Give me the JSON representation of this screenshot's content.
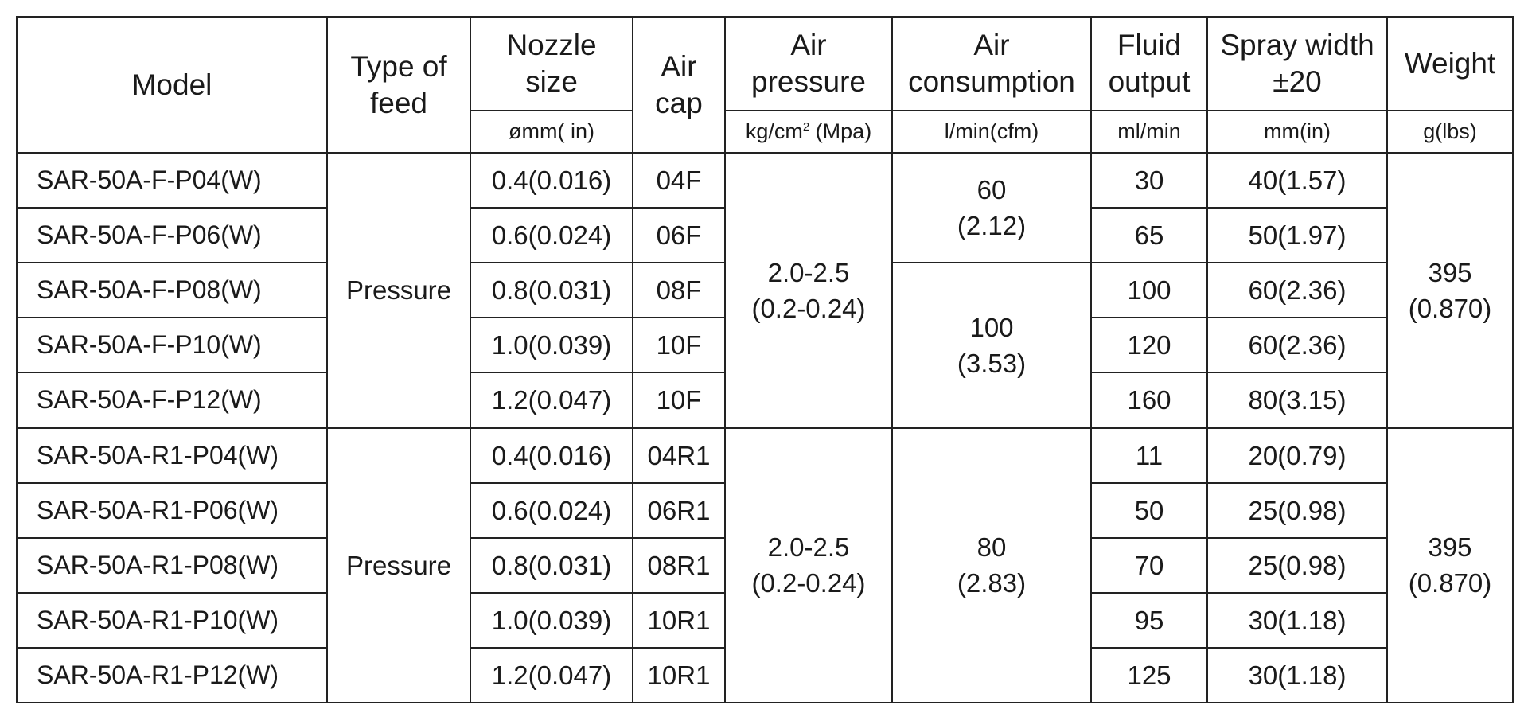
{
  "headers": {
    "model": "Model",
    "type_of_feed": "Type of\nfeed",
    "nozzle_size": "Nozzle\nsize",
    "air_cap": "Air\ncap",
    "air_pressure": "Air\npressure",
    "air_consumption": "Air\nconsumption",
    "fluid_output": "Fluid\noutput",
    "spray_width": "Spray width\n±20",
    "weight": "Weight"
  },
  "units": {
    "nozzle_size": "ømm( in)",
    "air_pressure_a": "kg/cm",
    "air_pressure_sup": "2",
    "air_pressure_b": " (Mpa)",
    "air_consumption": "l/min(cfm)",
    "fluid_output": "ml/min",
    "spray_width": "mm(in)",
    "weight": "g(lbs)"
  },
  "groups": [
    {
      "type_of_feed": "Pressure",
      "air_pressure": "2.0-2.5\n(0.2-0.24)",
      "weight": "395\n(0.870)",
      "air_consumption_a": "60\n(2.12)",
      "air_consumption_b": "100\n(3.53)",
      "rows": [
        {
          "model": "SAR-50A-F-P04(W)",
          "nozzle": "0.4(0.016)",
          "air_cap": "04F",
          "fluid": "30",
          "spray": "40(1.57)"
        },
        {
          "model": "SAR-50A-F-P06(W)",
          "nozzle": "0.6(0.024)",
          "air_cap": "06F",
          "fluid": "65",
          "spray": "50(1.97)"
        },
        {
          "model": "SAR-50A-F-P08(W)",
          "nozzle": "0.8(0.031)",
          "air_cap": "08F",
          "fluid": "100",
          "spray": "60(2.36)"
        },
        {
          "model": "SAR-50A-F-P10(W)",
          "nozzle": "1.0(0.039)",
          "air_cap": "10F",
          "fluid": "120",
          "spray": "60(2.36)"
        },
        {
          "model": "SAR-50A-F-P12(W)",
          "nozzle": "1.2(0.047)",
          "air_cap": "10F",
          "fluid": "160",
          "spray": "80(3.15)"
        }
      ]
    },
    {
      "type_of_feed": "Pressure",
      "air_pressure": "2.0-2.5\n(0.2-0.24)",
      "weight": "395\n(0.870)",
      "air_consumption": "80\n(2.83)",
      "rows": [
        {
          "model": "SAR-50A-R1-P04(W)",
          "nozzle": "0.4(0.016)",
          "air_cap": "04R1",
          "fluid": "11",
          "spray": "20(0.79)"
        },
        {
          "model": "SAR-50A-R1-P06(W)",
          "nozzle": "0.6(0.024)",
          "air_cap": "06R1",
          "fluid": "50",
          "spray": "25(0.98)"
        },
        {
          "model": "SAR-50A-R1-P08(W)",
          "nozzle": "0.8(0.031)",
          "air_cap": "08R1",
          "fluid": "70",
          "spray": "25(0.98)"
        },
        {
          "model": "SAR-50A-R1-P10(W)",
          "nozzle": "1.0(0.039)",
          "air_cap": "10R1",
          "fluid": "95",
          "spray": "30(1.18)"
        },
        {
          "model": "SAR-50A-R1-P12(W)",
          "nozzle": "1.2(0.047)",
          "air_cap": "10R1",
          "fluid": "125",
          "spray": "30(1.18)"
        }
      ]
    }
  ]
}
